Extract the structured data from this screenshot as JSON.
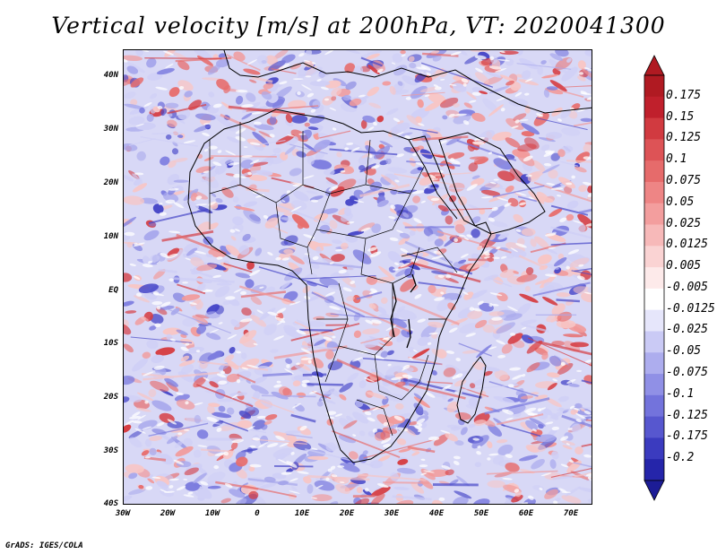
{
  "title": "Vertical velocity [m/s] at 200hPa, VT: 2020041300",
  "credit": "GrADS: IGES/COLA",
  "map": {
    "lon_range": [
      -30,
      75
    ],
    "lat_range": [
      -40,
      45
    ],
    "lat_ticks": [
      {
        "value": 40,
        "label": "40N"
      },
      {
        "value": 30,
        "label": "30N"
      },
      {
        "value": 20,
        "label": "20N"
      },
      {
        "value": 10,
        "label": "10N"
      },
      {
        "value": 0,
        "label": "EQ"
      },
      {
        "value": -10,
        "label": "10S"
      },
      {
        "value": -20,
        "label": "20S"
      },
      {
        "value": -30,
        "label": "30S"
      },
      {
        "value": -40,
        "label": "40S"
      }
    ],
    "lon_ticks": [
      {
        "value": -30,
        "label": "30W"
      },
      {
        "value": -20,
        "label": "20W"
      },
      {
        "value": -10,
        "label": "10W"
      },
      {
        "value": 0,
        "label": "0"
      },
      {
        "value": 10,
        "label": "10E"
      },
      {
        "value": 20,
        "label": "20E"
      },
      {
        "value": 30,
        "label": "30E"
      },
      {
        "value": 40,
        "label": "40E"
      },
      {
        "value": 50,
        "label": "50E"
      },
      {
        "value": 60,
        "label": "60E"
      },
      {
        "value": 70,
        "label": "70E"
      }
    ]
  },
  "colorbar": {
    "levels": [
      {
        "label": "0.175",
        "color": "#c0202c"
      },
      {
        "label": "0.15",
        "color": "#d13a40"
      },
      {
        "label": "0.125",
        "color": "#dd5356"
      },
      {
        "label": "0.1",
        "color": "#e66b6b"
      },
      {
        "label": "0.075",
        "color": "#ee8585"
      },
      {
        "label": "0.05",
        "color": "#f39e9e"
      },
      {
        "label": "0.025",
        "color": "#f7b9b9"
      },
      {
        "label": "0.0125",
        "color": "#fad3d3"
      },
      {
        "label": "0.005",
        "color": "#fdeaea"
      },
      {
        "label": "-0.005",
        "color": "#ffffff"
      },
      {
        "label": "-0.0125",
        "color": "#e6e6fb"
      },
      {
        "label": "-0.025",
        "color": "#cacaf5"
      },
      {
        "label": "-0.05",
        "color": "#adadee"
      },
      {
        "label": "-0.075",
        "color": "#9090e6"
      },
      {
        "label": "-0.1",
        "color": "#7373dc"
      },
      {
        "label": "-0.125",
        "color": "#5757cf"
      },
      {
        "label": "-0.175",
        "color": "#3b3bbf"
      },
      {
        "label": "-0.2",
        "color": "#2525aa"
      }
    ],
    "top_color": "#b01a22",
    "bottom_color": "#1c1c96"
  },
  "palette": {
    "positive": [
      "#f7c6c6",
      "#f29a9a",
      "#e76e6e",
      "#d63e43"
    ],
    "negative": [
      "#cfcff6",
      "#a8a8ec",
      "#7c7cdf",
      "#4747c8"
    ],
    "land_outline": "#000000"
  }
}
